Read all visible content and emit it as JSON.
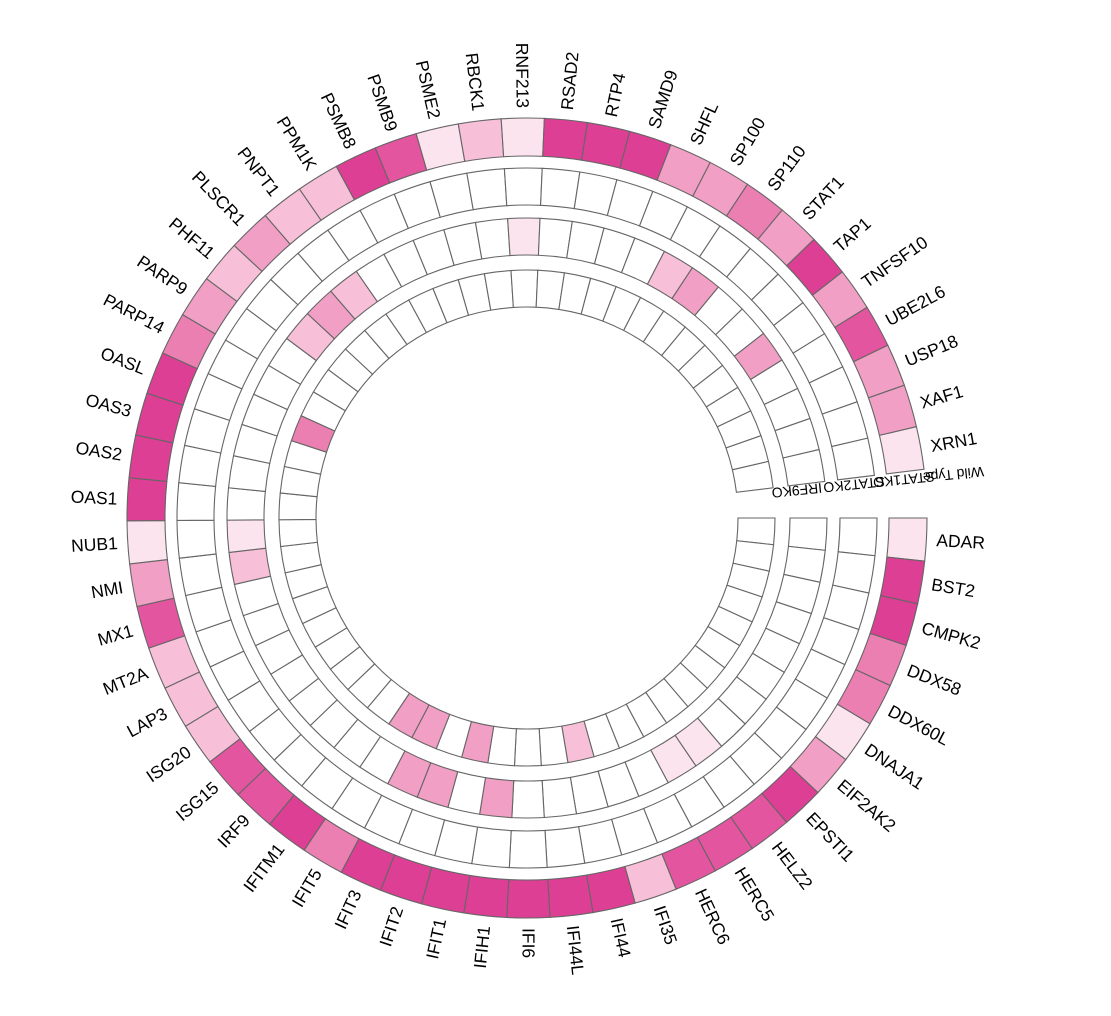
{
  "chart_data": {
    "type": "heatmap",
    "layout": "circular",
    "title": "",
    "color_scale": [
      "#ffffff",
      "#fce4ee",
      "#f7c0d8",
      "#f29fc5",
      "#eb7fb1",
      "#e3559f",
      "#dc3f93"
    ],
    "tracks": [
      "Wild Type",
      "STAT1KO",
      "STAT2KO",
      "IRF9KO"
    ],
    "genes": [
      "ADAR",
      "BST2",
      "CMPK2",
      "DDX58",
      "DDX60L",
      "DNAJA1",
      "EIF2AK2",
      "EPSTI1",
      "HELZ2",
      "HERC5",
      "HERC6",
      "IFI35",
      "IFI44",
      "IFI44L",
      "IFI6",
      "IFIH1",
      "IFIT1",
      "IFIT2",
      "IFIT3",
      "IFIT5",
      "IFITM1",
      "IRF9",
      "ISG15",
      "ISG20",
      "LAP3",
      "MT2A",
      "MX1",
      "NMI",
      "NUB1",
      "OAS1",
      "OAS2",
      "OAS3",
      "OASL",
      "PARP14",
      "PARP9",
      "PHF11",
      "PLSCR1",
      "PNPT1",
      "PPM1K",
      "PSMB8",
      "PSMB9",
      "PSME2",
      "RBCK1",
      "RNF213",
      "RSAD2",
      "RTP4",
      "SAMD9",
      "SHFL",
      "SP100",
      "SP110",
      "STAT1",
      "TAP1",
      "TNFSF10",
      "UBE2L6",
      "USP18",
      "XAF1",
      "XRN1"
    ],
    "values": {
      "Wild Type": [
        1,
        6,
        6,
        4,
        4,
        1,
        3,
        6,
        5,
        5,
        5,
        2,
        6,
        6,
        6,
        6,
        6,
        6,
        6,
        4,
        6,
        5,
        5,
        2,
        2,
        2,
        5,
        3,
        1,
        6,
        6,
        6,
        6,
        4,
        3,
        2,
        3,
        2,
        2,
        6,
        5,
        1,
        2,
        1,
        6,
        6,
        6,
        3,
        3,
        4,
        3,
        6,
        3,
        5,
        3,
        3,
        1
      ],
      "STAT1KO": [
        0,
        0,
        0,
        0,
        0,
        0,
        0,
        0,
        0,
        0,
        0,
        0,
        0,
        0,
        0,
        0,
        0,
        0,
        0,
        0,
        0,
        0,
        0,
        0,
        0,
        0,
        0,
        0,
        0,
        0,
        0,
        0,
        0,
        0,
        0,
        0,
        0,
        0,
        0,
        0,
        0,
        0,
        0,
        0,
        0,
        0,
        0,
        0,
        0,
        0,
        0,
        0,
        0,
        0,
        0,
        0,
        0
      ],
      "STAT2KO": [
        0,
        0,
        0,
        0,
        0,
        0,
        0,
        0,
        1,
        1,
        0,
        0,
        0,
        0,
        0,
        3,
        0,
        3,
        3,
        0,
        0,
        0,
        0,
        0,
        0,
        0,
        0,
        2,
        1,
        0,
        0,
        0,
        0,
        0,
        0,
        2,
        3,
        2,
        0,
        0,
        0,
        0,
        0,
        1,
        0,
        0,
        0,
        0,
        2,
        3,
        0,
        0,
        3,
        0,
        0,
        0,
        0
      ],
      "IRF9KO": [
        0,
        0,
        0,
        0,
        0,
        0,
        0,
        0,
        0,
        0,
        0,
        0,
        2,
        0,
        0,
        0,
        3,
        0,
        3,
        3,
        0,
        0,
        0,
        0,
        0,
        0,
        0,
        0,
        0,
        0,
        0,
        0,
        4,
        0,
        0,
        0,
        0,
        0,
        0,
        0,
        0,
        0,
        0,
        0,
        0,
        0,
        0,
        0,
        0,
        0,
        0,
        0,
        0,
        0,
        0,
        0,
        0
      ]
    }
  }
}
